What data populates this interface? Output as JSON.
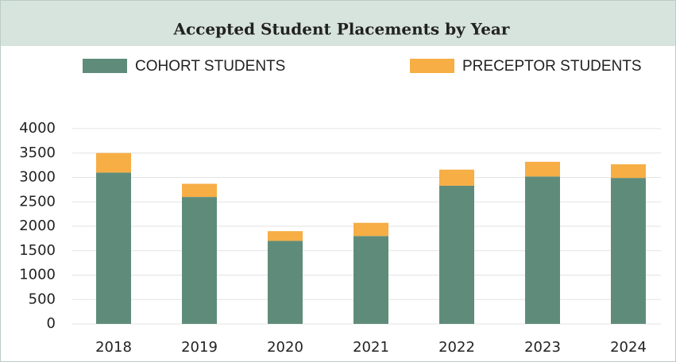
{
  "chart_data": {
    "type": "stacked-bar",
    "title": "Accepted Student Placements by Year",
    "categories": [
      "2018",
      "2019",
      "2020",
      "2021",
      "2022",
      "2023",
      "2024"
    ],
    "series": [
      {
        "name": "COHORT STUDENTS",
        "color": "#5f8c7a",
        "values": [
          3100,
          2600,
          1700,
          1800,
          2830,
          3020,
          2990
        ]
      },
      {
        "name": "PRECEPTOR STUDENTS",
        "color": "#f6ae45",
        "values": [
          400,
          270,
          200,
          270,
          330,
          300,
          280
        ]
      }
    ],
    "ylim": [
      0,
      4000
    ],
    "yticks": [
      0,
      500,
      1000,
      1500,
      2000,
      2500,
      3000,
      3500,
      4000
    ],
    "grid": true
  }
}
